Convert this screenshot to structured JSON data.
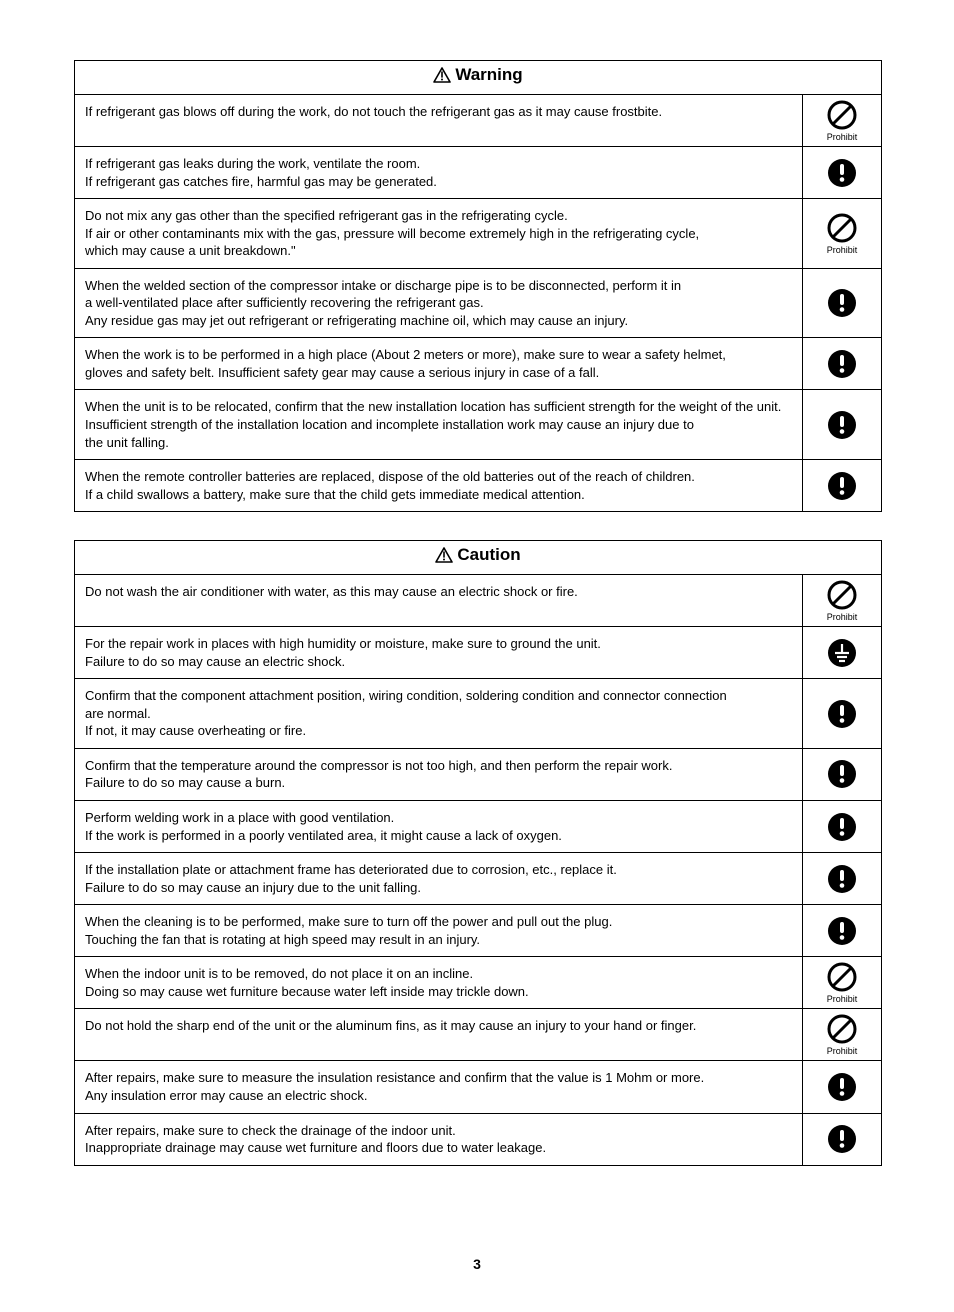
{
  "page_number": "3",
  "icon_colors": {
    "prohibit_stroke": "#000000",
    "mandatory_fill": "#000000",
    "bg": "#ffffff"
  },
  "warning": {
    "title": "Warning",
    "rows": [
      {
        "text": "If refrigerant gas blows off during the work, do not touch the refrigerant gas as it may cause frostbite.",
        "icon": "prohibit",
        "label": "Prohibit"
      },
      {
        "text": "If refrigerant gas leaks during the work, ventilate the room.\nIf refrigerant gas catches fire, harmful gas may be generated.",
        "icon": "mandatory",
        "label": ""
      },
      {
        "text": "Do not mix any gas other than the specified refrigerant gas in the refrigerating cycle.\nIf air or other contaminants mix with the gas, pressure will become extremely high in the refrigerating cycle,\nwhich may cause a unit breakdown.\"",
        "icon": "prohibit",
        "label": "Prohibit"
      },
      {
        "text": "When the welded section of the compressor intake or discharge pipe is to be disconnected, perform it in\na well-ventilated place after sufficiently recovering the refrigerant gas.\nAny residue gas may jet out refrigerant or refrigerating machine oil, which may cause an injury.",
        "icon": "mandatory",
        "label": ""
      },
      {
        "text": "When the work is to be performed in a high place (About 2 meters or more), make sure to wear a safety helmet,\ngloves and safety belt. Insufficient safety gear may cause a serious injury in case of a fall.",
        "icon": "mandatory",
        "label": ""
      },
      {
        "text": "When the unit is to be relocated, confirm that the new installation location has sufficient strength for the weight of the unit.\nInsufficient strength of the installation location and incomplete installation work may cause an injury due to\nthe unit falling.",
        "icon": "mandatory",
        "label": ""
      },
      {
        "text": "When the remote controller batteries are replaced, dispose of the old batteries out of the reach of children.\nIf a child swallows a battery, make sure that the child gets immediate medical attention.",
        "icon": "mandatory",
        "label": ""
      }
    ]
  },
  "caution": {
    "title": "Caution",
    "rows": [
      {
        "text": "Do not wash the air conditioner with water, as this may cause an electric shock or fire.",
        "icon": "prohibit",
        "label": "Prohibit"
      },
      {
        "text": "For the repair work in places with high humidity or moisture, make sure to ground the unit.\nFailure to do so may cause an electric shock.",
        "icon": "ground",
        "label": ""
      },
      {
        "text": "Confirm that the component attachment position, wiring condition, soldering condition and connector connection\nare normal.\nIf not, it may cause overheating or fire.",
        "icon": "mandatory",
        "label": ""
      },
      {
        "text": "Confirm that the temperature around the compressor is not too high, and then perform the repair work.\nFailure to do so may cause a burn.",
        "icon": "mandatory",
        "label": ""
      },
      {
        "text": "Perform welding work in a place with good ventilation.\nIf the work is performed in a poorly ventilated area, it might cause a lack of oxygen.",
        "icon": "mandatory",
        "label": ""
      },
      {
        "text": "If the installation plate or attachment frame has deteriorated due to corrosion, etc., replace it.\nFailure to do so may cause an injury due to the unit falling.",
        "icon": "mandatory",
        "label": ""
      },
      {
        "text": "When the cleaning is to be performed, make sure to turn off the power and pull out the plug.\nTouching the fan that is rotating at high speed may result in an injury.",
        "icon": "mandatory",
        "label": ""
      },
      {
        "text": "When the indoor unit is to be removed, do not place it on an incline.\nDoing so may cause wet furniture because water left inside may trickle down.",
        "icon": "prohibit",
        "label": "Prohibit"
      },
      {
        "text": "Do not hold the sharp end of the unit or the aluminum fins, as it may cause an injury to your hand or finger.",
        "icon": "prohibit",
        "label": "Prohibit"
      },
      {
        "text": "After repairs, make sure to measure the insulation resistance and confirm that the value is 1 Mohm or more.\nAny insulation error may cause an electric shock.",
        "icon": "mandatory",
        "label": ""
      },
      {
        "text": "After repairs, make sure to check the drainage of the indoor unit.\nInappropriate drainage may cause wet furniture and floors due to water leakage.",
        "icon": "mandatory",
        "label": ""
      }
    ]
  }
}
